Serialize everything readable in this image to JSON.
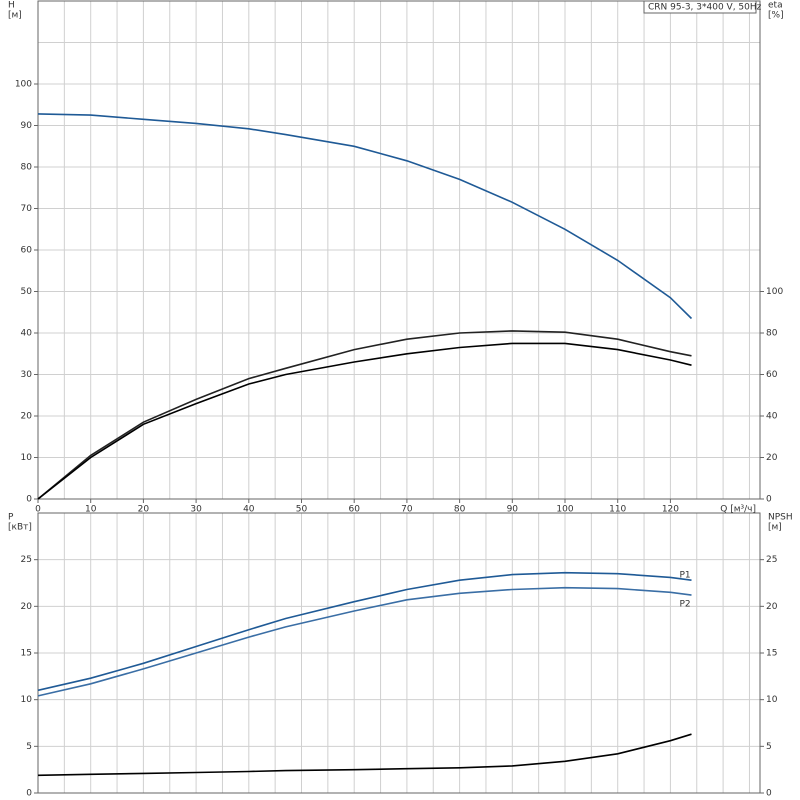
{
  "chart_data": [
    {
      "type": "line",
      "title": "CRN 95-3, 3*400 V, 50Hz",
      "y_label": "H",
      "y_unit": "[м]",
      "y2_label": "eta",
      "y2_unit": "[%]",
      "x_label": "Q [м³/ч]",
      "x": [
        0,
        10,
        20,
        30,
        40,
        47,
        60,
        70,
        80,
        90,
        100,
        110,
        120,
        124
      ],
      "series": [
        {
          "color": "#1f5a96",
          "values": [
            92.8,
            92.5,
            91.5,
            90.5,
            89.2,
            87.8,
            85,
            81.5,
            77,
            71.5,
            65,
            57.5,
            48.5,
            43.5
          ]
        },
        {
          "color": "#222222",
          "axis": "y2",
          "values": [
            0,
            21,
            37,
            48,
            58,
            63,
            72,
            77,
            80,
            81,
            80.4,
            77,
            71,
            69
          ]
        },
        {
          "color": "#000000",
          "axis": "y2",
          "values": [
            0,
            20,
            36,
            46,
            55.4,
            60,
            66,
            70,
            73,
            75,
            75,
            72,
            67,
            64.5
          ]
        }
      ],
      "xlim": [
        0,
        137
      ],
      "xticks": [
        0,
        10,
        20,
        30,
        40,
        50,
        60,
        70,
        80,
        90,
        100,
        110,
        120
      ],
      "xgrid": [
        5,
        10,
        15,
        20,
        25,
        30,
        35,
        40,
        45,
        50,
        55,
        60,
        65,
        70,
        75,
        80,
        85,
        90,
        95,
        100,
        105,
        110,
        115,
        120,
        125,
        130,
        135
      ],
      "ylim": [
        0,
        120
      ],
      "yticks": [
        0,
        10,
        20,
        30,
        40,
        50,
        60,
        70,
        80,
        90,
        100
      ],
      "ygrid": [
        10,
        20,
        30,
        40,
        50,
        60,
        70,
        80,
        90,
        100,
        110
      ],
      "y2lim": [
        0,
        240
      ],
      "y2ticks": [
        0,
        20,
        40,
        60,
        80,
        100
      ]
    },
    {
      "type": "line",
      "y_label": "P",
      "y_unit": "[кВт]",
      "y2_label": "NPSH",
      "y2_unit": "[м]",
      "x": [
        0,
        10,
        20,
        30,
        40,
        47,
        60,
        70,
        80,
        90,
        100,
        110,
        120,
        124
      ],
      "series": [
        {
          "name": "P1",
          "color": "#1f5a96",
          "values": [
            11,
            12.3,
            13.9,
            15.7,
            17.5,
            18.7,
            20.5,
            21.8,
            22.8,
            23.4,
            23.6,
            23.5,
            23.1,
            22.8
          ]
        },
        {
          "name": "P2",
          "color": "#3a6ea5",
          "values": [
            10.4,
            11.7,
            13.3,
            15,
            16.7,
            17.8,
            19.5,
            20.7,
            21.4,
            21.8,
            22,
            21.9,
            21.5,
            21.2
          ]
        },
        {
          "color": "#000000",
          "axis": "y2",
          "values": [
            1.9,
            2,
            2.1,
            2.2,
            2.3,
            2.4,
            2.5,
            2.6,
            2.7,
            2.9,
            3.4,
            4.2,
            5.6,
            6.3
          ]
        }
      ],
      "xlim": [
        0,
        137
      ],
      "xgrid": [
        5,
        10,
        15,
        20,
        25,
        30,
        35,
        40,
        45,
        50,
        55,
        60,
        65,
        70,
        75,
        80,
        85,
        90,
        95,
        100,
        105,
        110,
        115,
        120,
        125,
        130,
        135
      ],
      "ylim": [
        0,
        30
      ],
      "yticks": [
        0,
        5,
        10,
        15,
        20,
        25
      ],
      "ygrid": [
        5,
        10,
        15,
        20,
        25
      ],
      "y2lim": [
        0,
        30
      ],
      "y2ticks": [
        0,
        5,
        10,
        15,
        20,
        25
      ]
    }
  ]
}
